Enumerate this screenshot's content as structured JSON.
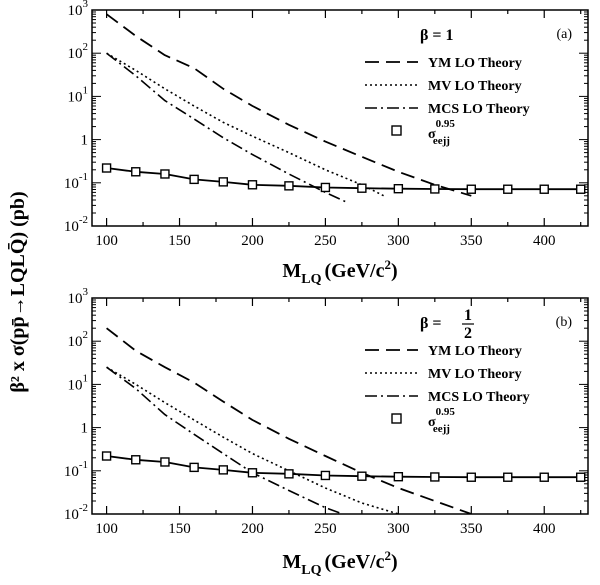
{
  "chart_data": [
    {
      "type": "line",
      "panel_label": "(a)",
      "beta_label": "β = 1",
      "xlabel": {
        "main": "M",
        "sub": "LQ",
        "units": "(GeV/c",
        "sup": "2",
        "close": ")"
      },
      "xlim": [
        90,
        430
      ],
      "ylim": [
        0.01,
        1000
      ],
      "yscale": "log",
      "xticks": [
        100,
        150,
        200,
        250,
        300,
        350,
        400
      ],
      "yticks": [
        {
          "value": 0.01,
          "base": "10",
          "exp": "-2"
        },
        {
          "value": 0.1,
          "base": "10",
          "exp": "-1"
        },
        {
          "value": 1,
          "base": "1",
          "exp": ""
        },
        {
          "value": 10,
          "base": "10",
          "exp": "1"
        },
        {
          "value": 100,
          "base": "10",
          "exp": "2"
        },
        {
          "value": 1000,
          "base": "10",
          "exp": "3"
        }
      ],
      "legend_position": "top-right",
      "series": [
        {
          "name": "YM  LO Theory",
          "style": "dashed",
          "x": [
            100,
            120,
            140,
            160,
            180,
            200,
            225,
            250,
            275,
            300,
            325,
            350
          ],
          "y": [
            800,
            250,
            90,
            45,
            15,
            6,
            2.2,
            0.9,
            0.4,
            0.18,
            0.09,
            0.05
          ]
        },
        {
          "name": "MV  LO Theory",
          "style": "dotted",
          "x": [
            100,
            120,
            140,
            160,
            180,
            200,
            225,
            250,
            275,
            290
          ],
          "y": [
            100,
            40,
            15,
            6,
            2.5,
            1.2,
            0.5,
            0.2,
            0.09,
            0.05
          ]
        },
        {
          "name": "MCS  LO Theory",
          "style": "dashdot",
          "x": [
            100,
            120,
            140,
            160,
            180,
            200,
            225,
            250,
            265
          ],
          "y": [
            100,
            30,
            8,
            3,
            1.1,
            0.45,
            0.16,
            0.06,
            0.035
          ]
        },
        {
          "name": "σ",
          "name_sub": "eejj",
          "name_sup": "0.95",
          "style": "solid-square",
          "x": [
            100,
            120,
            140,
            160,
            180,
            200,
            225,
            250,
            275,
            300,
            325,
            350,
            375,
            400,
            425
          ],
          "y": [
            0.22,
            0.18,
            0.16,
            0.12,
            0.105,
            0.09,
            0.085,
            0.078,
            0.075,
            0.073,
            0.072,
            0.071,
            0.071,
            0.071,
            0.071
          ]
        }
      ]
    },
    {
      "type": "line",
      "panel_label": "(b)",
      "beta_label": "β = ",
      "beta_frac": {
        "num": "1",
        "den": "2"
      },
      "xlabel": {
        "main": "M",
        "sub": "LQ",
        "units": "(GeV/c",
        "sup": "2",
        "close": ")"
      },
      "xlim": [
        90,
        430
      ],
      "ylim": [
        0.01,
        1000
      ],
      "yscale": "log",
      "xticks": [
        100,
        150,
        200,
        250,
        300,
        350,
        400
      ],
      "yticks": [
        {
          "value": 0.01,
          "base": "10",
          "exp": "-2"
        },
        {
          "value": 0.1,
          "base": "10",
          "exp": "-1"
        },
        {
          "value": 1,
          "base": "1",
          "exp": ""
        },
        {
          "value": 10,
          "base": "10",
          "exp": "1"
        },
        {
          "value": 100,
          "base": "10",
          "exp": "2"
        },
        {
          "value": 1000,
          "base": "10",
          "exp": "3"
        }
      ],
      "legend_position": "top-right",
      "series": [
        {
          "name": "YM  LO Theory",
          "style": "dashed",
          "x": [
            100,
            120,
            140,
            160,
            180,
            200,
            225,
            250,
            275,
            300,
            325,
            350
          ],
          "y": [
            200,
            60,
            25,
            11,
            4,
            1.5,
            0.55,
            0.22,
            0.09,
            0.04,
            0.02,
            0.01
          ]
        },
        {
          "name": "MV  LO Theory",
          "style": "dotted",
          "x": [
            100,
            120,
            140,
            160,
            180,
            200,
            225,
            250,
            275,
            300
          ],
          "y": [
            25,
            10,
            3.8,
            1.5,
            0.6,
            0.25,
            0.1,
            0.04,
            0.018,
            0.01
          ]
        },
        {
          "name": "MCS  LO Theory",
          "style": "dashdot",
          "x": [
            100,
            120,
            140,
            160,
            180,
            200,
            225,
            250,
            262
          ],
          "y": [
            25,
            8,
            2,
            0.7,
            0.25,
            0.09,
            0.035,
            0.014,
            0.01
          ]
        },
        {
          "name": "σ",
          "name_sub": "eejj",
          "name_sup": "0.95",
          "style": "solid-square",
          "x": [
            100,
            120,
            140,
            160,
            180,
            200,
            225,
            250,
            275,
            300,
            325,
            350,
            375,
            400,
            425
          ],
          "y": [
            0.22,
            0.18,
            0.16,
            0.12,
            0.105,
            0.09,
            0.085,
            0.078,
            0.075,
            0.073,
            0.072,
            0.071,
            0.071,
            0.071,
            0.071
          ]
        }
      ]
    }
  ],
  "shared_ylabel": "β² x σ(pp̄→LQLQ̄) (pb)"
}
